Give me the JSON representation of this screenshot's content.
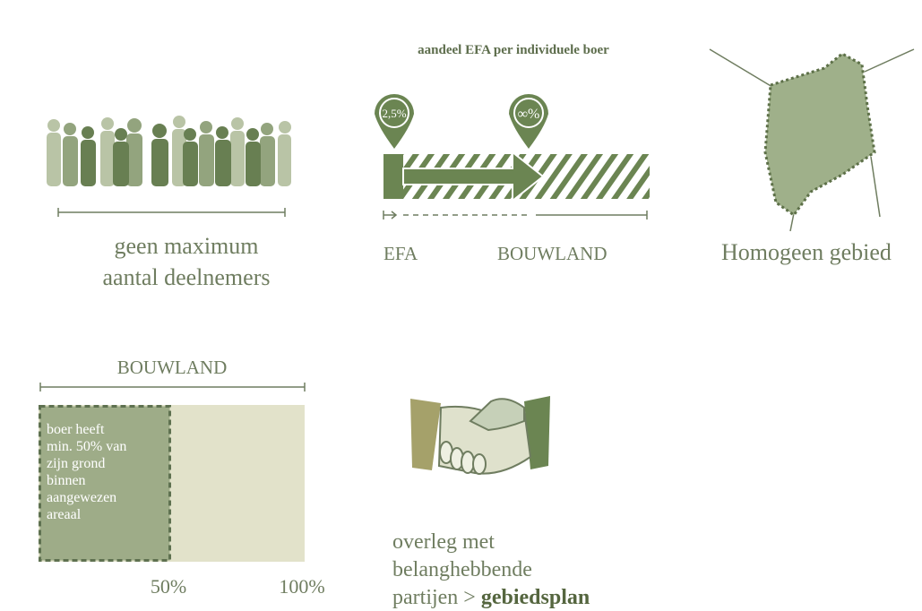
{
  "participants": {
    "lines": [
      "geen maximum",
      "aantal deelnemers"
    ]
  },
  "efa": {
    "title": "aandeel EFA per individuele boer",
    "pin_left": "2,5%",
    "pin_right": "∞%",
    "label_left": "EFA",
    "label_right": "BOUWLAND"
  },
  "area": {
    "label": "Homogeen gebied"
  },
  "bouwland": {
    "title": "BOUWLAND",
    "box_lines": [
      "boer heeft",
      "min. 50% van",
      "zijn grond",
      "binnen",
      "aangewezen",
      "areaal"
    ],
    "mark_50": "50%",
    "mark_100": "100%"
  },
  "consultation": {
    "lines": [
      "overleg met",
      "belanghebbende"
    ],
    "last_line": "partijen > ",
    "emphasis": "gebiedsplan"
  }
}
